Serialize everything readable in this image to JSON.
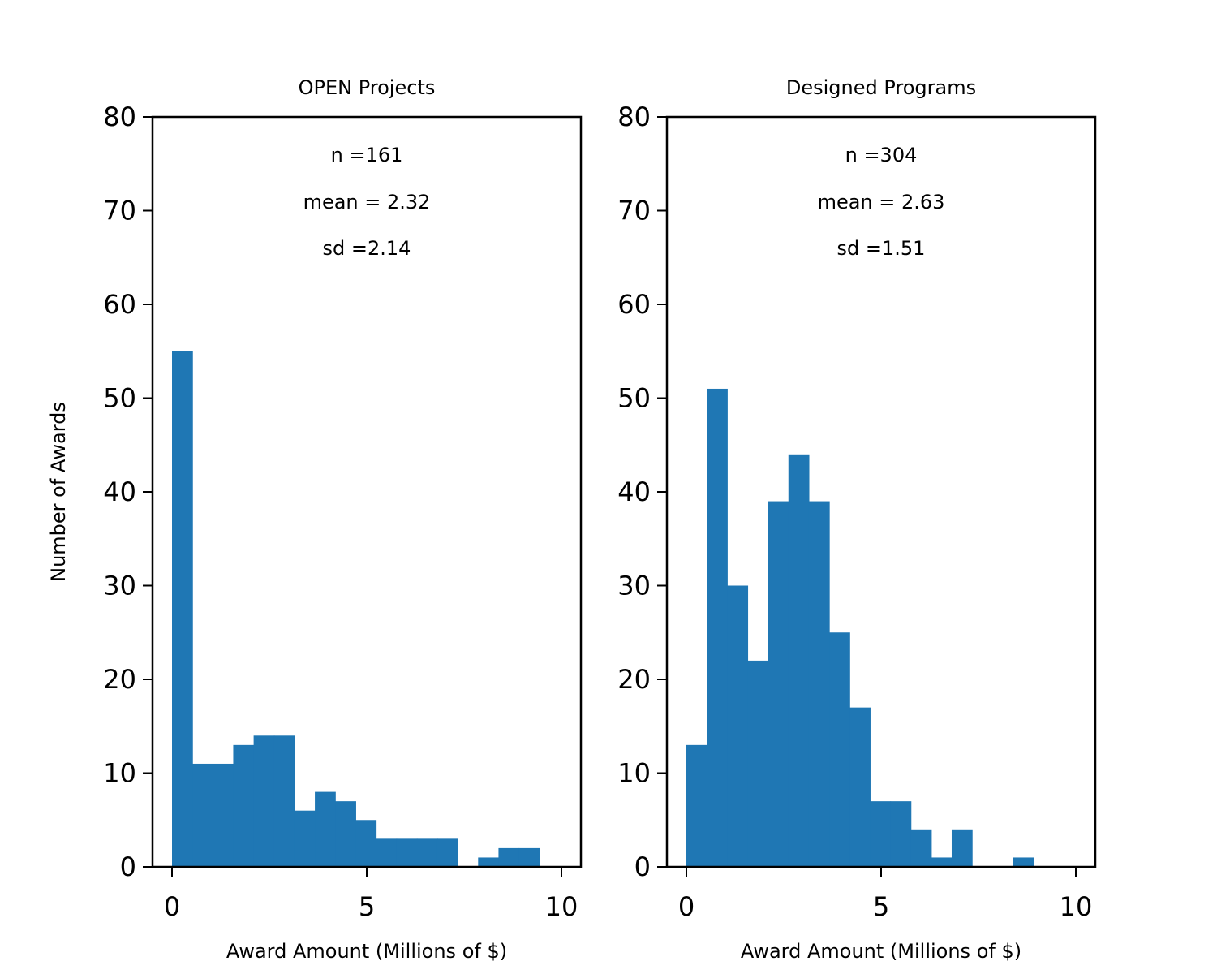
{
  "bar_color": "#1f77b4",
  "chart_data": [
    {
      "type": "bar",
      "title": "OPEN Projects",
      "xlabel": "Award Amount (Millions of $)",
      "ylabel": "Number of Awards",
      "xlim": [
        -0.5,
        10.5
      ],
      "ylim": [
        0,
        80
      ],
      "xticks": [
        0,
        5,
        10
      ],
      "yticks": [
        0,
        10,
        20,
        30,
        40,
        50,
        60,
        70,
        80
      ],
      "bin_edges": [
        0,
        0.524,
        1.048,
        1.572,
        2.096,
        2.62,
        3.144,
        3.668,
        4.192,
        4.716,
        5.24,
        5.764,
        6.288,
        6.812,
        7.336,
        7.86,
        8.384,
        8.908,
        9.432
      ],
      "counts": [
        55,
        11,
        11,
        13,
        14,
        14,
        6,
        8,
        7,
        5,
        3,
        3,
        3,
        3,
        0,
        1,
        2,
        2
      ],
      "annotations": {
        "n": "n =161",
        "mean": "mean = 2.32",
        "sd": "sd =2.14"
      }
    },
    {
      "type": "bar",
      "title": "Designed Programs",
      "xlabel": "Award Amount (Millions of $)",
      "ylabel": "",
      "xlim": [
        -0.5,
        10.5
      ],
      "ylim": [
        0,
        80
      ],
      "xticks": [
        0,
        5,
        10
      ],
      "yticks": [
        0,
        10,
        20,
        30,
        40,
        50,
        60,
        70,
        80
      ],
      "bin_edges": [
        0,
        0.524,
        1.048,
        1.572,
        2.096,
        2.62,
        3.144,
        3.668,
        4.192,
        4.716,
        5.24,
        5.764,
        6.288,
        6.812,
        7.336,
        7.86,
        8.384,
        8.908,
        9.432,
        9.956
      ],
      "counts": [
        13,
        51,
        30,
        22,
        39,
        44,
        39,
        25,
        17,
        7,
        7,
        4,
        1,
        4,
        0,
        0,
        1,
        0,
        0
      ],
      "annotations": {
        "n": "n =304",
        "mean": "mean = 2.63",
        "sd": "sd =1.51"
      }
    }
  ]
}
